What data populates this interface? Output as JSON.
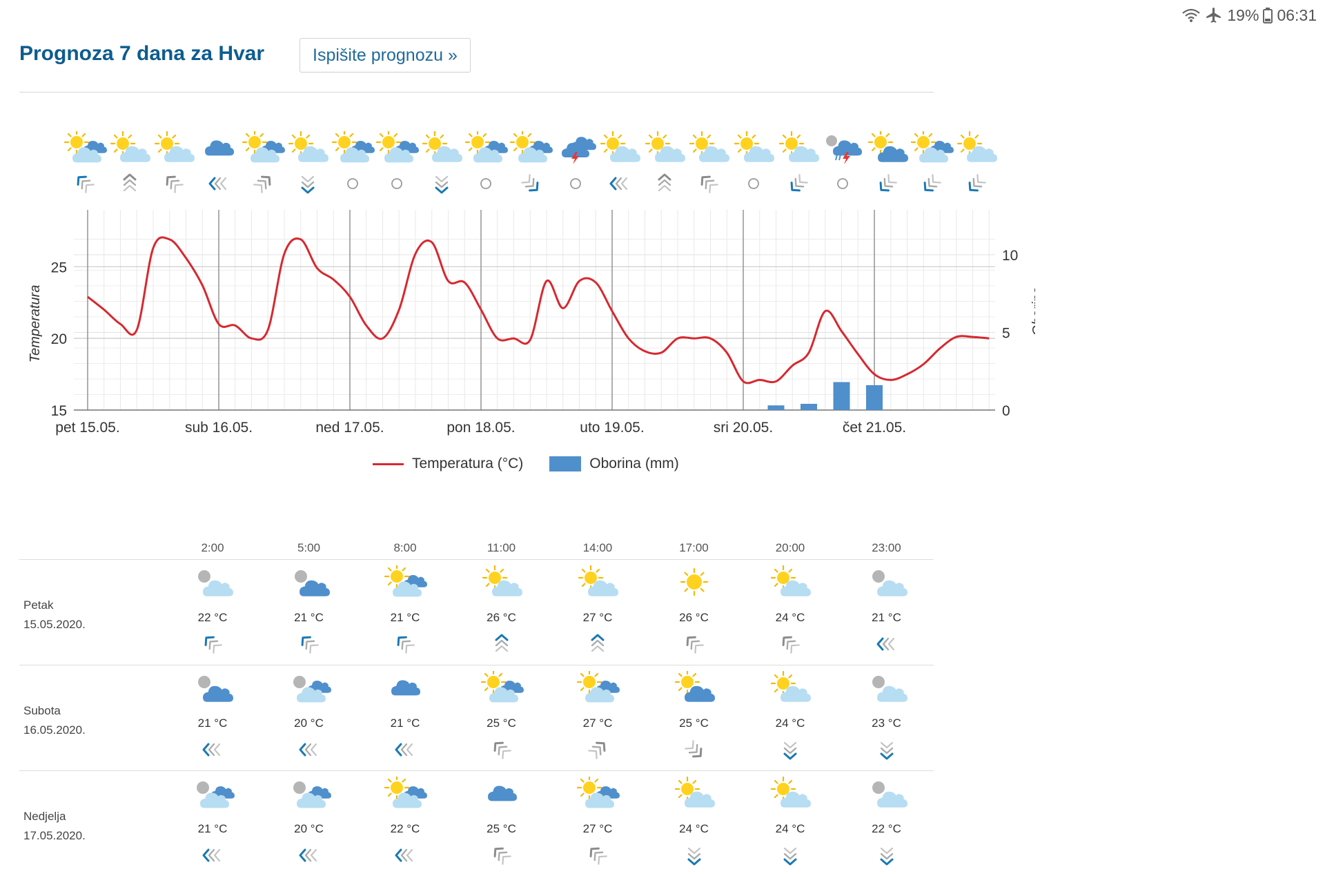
{
  "status_bar": {
    "battery": "19%",
    "time": "06:31"
  },
  "header": {
    "title": "Prognoza 7 dana za Hvar",
    "print_label": "Ispišite prognozu »"
  },
  "icon_strip": {
    "weather": [
      "sun-cloud-dark",
      "sun-cloud",
      "sun-cloud",
      "cloud",
      "sun-cloud-dark",
      "sun-cloud",
      "sun-cloud-dark",
      "sun-cloud-dark",
      "sun-cloud",
      "sun-cloud-dark",
      "sun-cloud-dark",
      "storm",
      "sun-cloud",
      "sun-cloud",
      "sun-cloud",
      "sun-cloud",
      "sun-cloud",
      "moon-storm",
      "sun-dark-cloud",
      "sun-cloud-dark",
      "sun-cloud"
    ],
    "wind": [
      "nw-blue",
      "n-grey",
      "nw-grey",
      "w-blue",
      "ne-grey",
      "s-blue",
      "calm",
      "calm",
      "s-blue",
      "calm",
      "se-blue",
      "calm",
      "w-blue",
      "n-grey",
      "nw-grey",
      "calm",
      "sw-blue",
      "calm",
      "sw-blue",
      "sw-blue",
      "sw-blue"
    ]
  },
  "chart_data": {
    "type": "line",
    "x_labels": [
      "pet 15.05.",
      "sub 16.05.",
      "ned 17.05.",
      "pon 18.05.",
      "uto 19.05.",
      "sri 20.05.",
      "čet 21.05."
    ],
    "y_left": {
      "label": "Temperatura",
      "ticks": [
        15,
        20,
        25
      ],
      "range": [
        15,
        28
      ]
    },
    "y_right": {
      "label": "Oborina",
      "ticks": [
        0,
        5,
        10
      ],
      "range": [
        0,
        12
      ]
    },
    "grid": true,
    "legend_position": "bottom",
    "series": [
      {
        "name": "Temperatura (°C)",
        "type": "line",
        "color": "#d7282f",
        "x": [
          0,
          0.125,
          0.25,
          0.375,
          0.5,
          0.625,
          0.75,
          0.875,
          1,
          1.125,
          1.25,
          1.375,
          1.5,
          1.625,
          1.75,
          1.875,
          2,
          2.125,
          2.25,
          2.375,
          2.5,
          2.625,
          2.75,
          2.875,
          3,
          3.125,
          3.25,
          3.375,
          3.5,
          3.625,
          3.75,
          3.875,
          4,
          4.125,
          4.25,
          4.375,
          4.5,
          4.625,
          4.75,
          4.875,
          5,
          5.125,
          5.25,
          5.375,
          5.5,
          5.625,
          5.75,
          5.875,
          6,
          6.125,
          6.25,
          6.375,
          6.5,
          6.625,
          6.75,
          6.875
        ],
        "y": [
          22.9,
          22.0,
          21.0,
          20.6,
          26.3,
          26.9,
          25.6,
          23.7,
          21.0,
          20.9,
          20.0,
          20.6,
          25.9,
          26.9,
          24.9,
          24.1,
          22.9,
          20.9,
          20.0,
          22.0,
          25.9,
          26.7,
          24.0,
          23.9,
          22.0,
          20.0,
          20.0,
          19.9,
          24.0,
          22.1,
          24.0,
          23.9,
          21.9,
          20.0,
          19.1,
          19.0,
          20.0,
          20.0,
          20.0,
          19.0,
          17.0,
          17.1,
          17.0,
          18.1,
          19.0,
          21.9,
          20.5,
          18.9,
          17.5,
          17.1,
          17.5,
          18.2,
          19.3,
          20.1,
          20.1,
          20.0
        ]
      },
      {
        "name": "Oborina (mm)",
        "type": "bar",
        "color": "#4f8fcc",
        "x": [
          5.25,
          5.5,
          5.75,
          6.0
        ],
        "values": [
          0.3,
          0.4,
          1.8,
          1.6
        ]
      }
    ]
  },
  "table": {
    "hours": [
      "2:00",
      "5:00",
      "8:00",
      "11:00",
      "14:00",
      "17:00",
      "20:00",
      "23:00"
    ],
    "days": [
      {
        "name": "Petak",
        "date": "15.05.2020.",
        "icons": [
          "moon-cloud",
          "moon-dark-cloud",
          "sun-cloud-dark",
          "sun-cloud",
          "sun-cloud",
          "sun",
          "sun-cloud",
          "moon-cloud"
        ],
        "temps": [
          "22 °C",
          "21 °C",
          "21 °C",
          "26 °C",
          "27 °C",
          "26 °C",
          "24 °C",
          "21 °C"
        ],
        "wind": [
          "nw-blue",
          "nw-blue",
          "nw-blue",
          "n-blue",
          "n-blue",
          "nw-grey",
          "nw-grey",
          "w-blue"
        ]
      },
      {
        "name": "Subota",
        "date": "16.05.2020.",
        "icons": [
          "moon-dark-cloud",
          "moon-cloud-dark",
          "cloud",
          "sun-cloud-dark",
          "sun-cloud-dark",
          "sun-dark-cloud",
          "sun-cloud",
          "moon-cloud"
        ],
        "temps": [
          "21 °C",
          "20 °C",
          "21 °C",
          "25 °C",
          "27 °C",
          "25 °C",
          "24 °C",
          "23 °C"
        ],
        "wind": [
          "w-blue",
          "w-blue",
          "w-blue",
          "nw-grey",
          "ne-grey",
          "se-grey",
          "s-blue",
          "s-blue"
        ]
      },
      {
        "name": "Nedjelja",
        "date": "17.05.2020.",
        "icons": [
          "moon-cloud-dark",
          "moon-cloud-dark",
          "sun-cloud-dark",
          "cloud",
          "sun-cloud-dark",
          "sun-cloud",
          "sun-cloud",
          "moon-cloud"
        ],
        "temps": [
          "21 °C",
          "20 °C",
          "22 °C",
          "25 °C",
          "27 °C",
          "24 °C",
          "24 °C",
          "22 °C"
        ],
        "wind": [
          "w-blue",
          "w-blue",
          "w-blue",
          "nw-grey",
          "nw-grey",
          "s-blue",
          "s-blue",
          "s-blue"
        ]
      }
    ]
  }
}
